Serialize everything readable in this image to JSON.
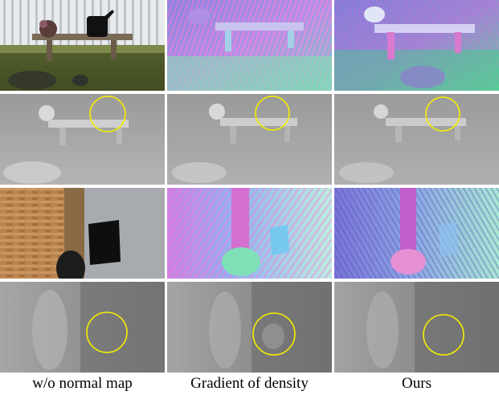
{
  "figure": {
    "columns": [
      {
        "label": "w/o normal map"
      },
      {
        "label": "Gradient of density"
      },
      {
        "label": "Ours"
      }
    ],
    "rows": [
      {
        "kind": "bench-normal-map"
      },
      {
        "kind": "bench-depth-map"
      },
      {
        "kind": "wall-normal-map"
      },
      {
        "kind": "wall-depth-map"
      }
    ],
    "highlight_color": "#f5f000"
  }
}
